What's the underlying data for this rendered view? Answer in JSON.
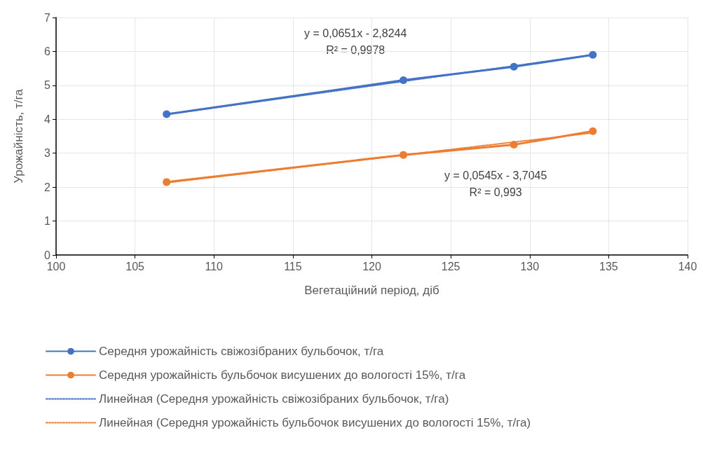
{
  "chart_data": {
    "type": "line",
    "xlabel": "Вегетаційний період, діб",
    "ylabel": "Урожайність, т/га",
    "xlim": [
      100,
      140
    ],
    "xticks": [
      100,
      105,
      110,
      115,
      120,
      125,
      130,
      135,
      140
    ],
    "ylim": [
      0,
      7
    ],
    "yticks": [
      0,
      1,
      2,
      3,
      4,
      5,
      6,
      7
    ],
    "grid": true,
    "legend": "bottom",
    "marker": "circle",
    "line_style": "solid",
    "annotations": [
      "y = 0,0651x - 2,8244\nR² = 0,9978",
      "y = 0,0545x - 3,7045\nR² = 0,993"
    ],
    "series": [
      {
        "name": "Середня урожайність свіжозібраних бульбочок, т/га",
        "color": "#4472c4",
        "x": [
          107,
          122,
          129,
          134
        ],
        "values": [
          4.15,
          5.15,
          5.55,
          5.9
        ]
      },
      {
        "name": "Середня урожайність бульбочок висушених до вологості 15%, т/га",
        "color": "#ed7d31",
        "x": [
          107,
          122,
          129,
          134
        ],
        "values": [
          2.15,
          2.95,
          3.25,
          3.65
        ]
      },
      {
        "name": "Линейная (Середня урожайність свіжозібраних бульбочок, т/га)",
        "color": "#4472c4",
        "x": [
          107,
          134
        ],
        "values": [
          4.14,
          5.9
        ],
        "line_style": "dotted",
        "marker": "none"
      },
      {
        "name": "Линейная (Середня урожайність бульбочок висушених до вологості 15%, т/га)",
        "color": "#ed7d31",
        "x": [
          107,
          134
        ],
        "values": [
          2.13,
          3.6
        ],
        "line_style": "dotted",
        "marker": "none"
      }
    ]
  }
}
